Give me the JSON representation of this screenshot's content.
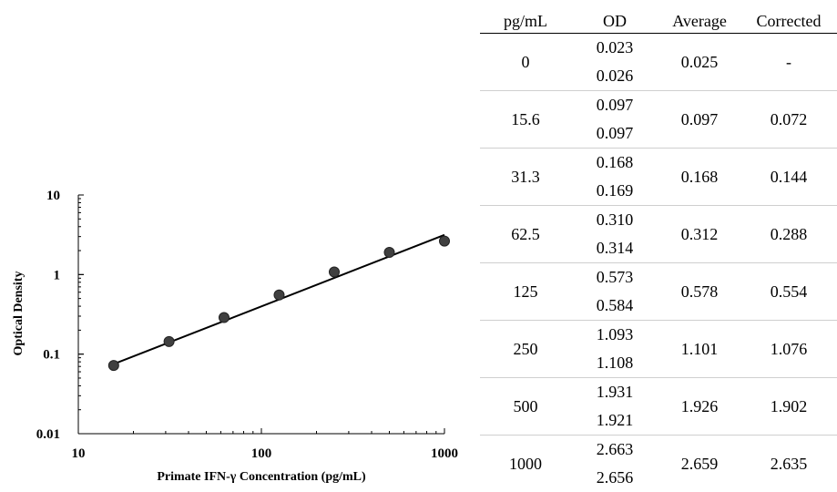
{
  "chart_data": {
    "type": "scatter",
    "xlabel": "Primate IFN-γ Concentration (pg/mL)",
    "ylabel": "Optical Density",
    "x_scale": "log",
    "y_scale": "log",
    "xlim": [
      10,
      1000
    ],
    "ylim": [
      0.01,
      10
    ],
    "x_ticks": [
      "10",
      "100",
      "1000"
    ],
    "y_ticks": [
      "0.01",
      "0.1",
      "1",
      "10"
    ],
    "series": [
      {
        "x": [
          15.6,
          31.3,
          62.5,
          125,
          250,
          500,
          1000
        ],
        "y": [
          0.072,
          0.144,
          0.288,
          0.554,
          1.076,
          1.902,
          2.635
        ]
      }
    ],
    "trendline": {
      "x": [
        15.6,
        1000
      ],
      "y": [
        0.075,
        3.15
      ]
    },
    "colors": {
      "marker": "#404040",
      "line": "#000000"
    }
  },
  "table": {
    "headers": [
      "pg/mL",
      "OD",
      "Average",
      "Corrected"
    ],
    "rows": [
      {
        "conc": "0",
        "od": [
          "0.023",
          "0.026"
        ],
        "average": "0.025",
        "corrected": "-"
      },
      {
        "conc": "15.6",
        "od": [
          "0.097",
          "0.097"
        ],
        "average": "0.097",
        "corrected": "0.072"
      },
      {
        "conc": "31.3",
        "od": [
          "0.168",
          "0.169"
        ],
        "average": "0.168",
        "corrected": "0.144"
      },
      {
        "conc": "62.5",
        "od": [
          "0.310",
          "0.314"
        ],
        "average": "0.312",
        "corrected": "0.288"
      },
      {
        "conc": "125",
        "od": [
          "0.573",
          "0.584"
        ],
        "average": "0.578",
        "corrected": "0.554"
      },
      {
        "conc": "250",
        "od": [
          "1.093",
          "1.108"
        ],
        "average": "1.101",
        "corrected": "1.076"
      },
      {
        "conc": "500",
        "od": [
          "1.931",
          "1.921"
        ],
        "average": "1.926",
        "corrected": "1.902"
      },
      {
        "conc": "1000",
        "od": [
          "2.663",
          "2.656"
        ],
        "average": "2.659",
        "corrected": "2.635"
      }
    ]
  }
}
